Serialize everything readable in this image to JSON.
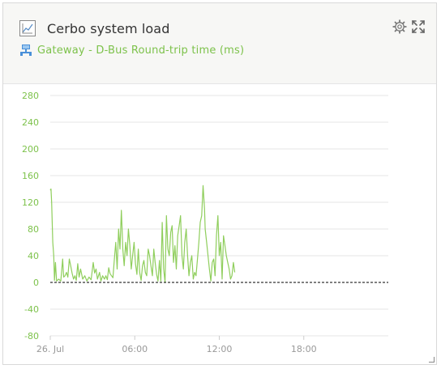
{
  "widget": {
    "title": "Cerbo system load",
    "subtitle": "Gateway - D-Bus Round-trip time (ms)",
    "icons": {
      "chart": "line-chart-icon",
      "settings": "gear-icon",
      "expand": "expand-icon",
      "network": "network-icon"
    },
    "colors": {
      "accent": "#7dc24b",
      "line": "#8fce5c",
      "baseline": "#000000",
      "grid": "#e6e6e6"
    }
  },
  "chart_data": {
    "type": "line",
    "title": "",
    "xlabel": "",
    "ylabel": "",
    "ylim": [
      -80,
      280
    ],
    "xlim": [
      0,
      24
    ],
    "y_ticks": [
      "280",
      "240",
      "200",
      "160",
      "120",
      "80",
      "40",
      "0",
      "-40",
      "-80"
    ],
    "x_ticks": [
      "26. Jul",
      "06:00",
      "12:00",
      "18:00"
    ],
    "x_tick_values": [
      0,
      6,
      12,
      18
    ],
    "baseline": 0,
    "grid": true,
    "series": [
      {
        "values": [
          [
            0.0,
            138
          ],
          [
            0.05,
            140
          ],
          [
            0.1,
            120
          ],
          [
            0.18,
            60
          ],
          [
            0.25,
            40
          ],
          [
            0.3,
            3
          ],
          [
            0.37,
            30
          ],
          [
            0.45,
            2
          ],
          [
            0.6,
            5
          ],
          [
            0.75,
            2
          ],
          [
            0.88,
            35
          ],
          [
            0.95,
            8
          ],
          [
            1.05,
            10
          ],
          [
            1.15,
            15
          ],
          [
            1.25,
            8
          ],
          [
            1.35,
            35
          ],
          [
            1.45,
            25
          ],
          [
            1.55,
            14
          ],
          [
            1.65,
            5
          ],
          [
            1.75,
            10
          ],
          [
            1.85,
            3
          ],
          [
            1.95,
            28
          ],
          [
            2.05,
            8
          ],
          [
            2.15,
            20
          ],
          [
            2.3,
            5
          ],
          [
            2.45,
            10
          ],
          [
            2.6,
            2
          ],
          [
            2.75,
            8
          ],
          [
            2.9,
            4
          ],
          [
            3.05,
            30
          ],
          [
            3.15,
            14
          ],
          [
            3.25,
            20
          ],
          [
            3.35,
            5
          ],
          [
            3.5,
            15
          ],
          [
            3.6,
            2
          ],
          [
            3.72,
            10
          ],
          [
            3.85,
            5
          ],
          [
            3.95,
            10
          ],
          [
            4.05,
            4
          ],
          [
            4.15,
            22
          ],
          [
            4.25,
            13
          ],
          [
            4.35,
            10
          ],
          [
            4.45,
            7
          ],
          [
            4.55,
            35
          ],
          [
            4.65,
            60
          ],
          [
            4.75,
            20
          ],
          [
            4.85,
            80
          ],
          [
            4.95,
            50
          ],
          [
            5.05,
            108
          ],
          [
            5.1,
            80
          ],
          [
            5.15,
            50
          ],
          [
            5.25,
            25
          ],
          [
            5.35,
            60
          ],
          [
            5.45,
            40
          ],
          [
            5.55,
            80
          ],
          [
            5.65,
            55
          ],
          [
            5.75,
            20
          ],
          [
            5.85,
            40
          ],
          [
            5.95,
            60
          ],
          [
            6.05,
            28
          ],
          [
            6.15,
            12
          ],
          [
            6.25,
            50
          ],
          [
            6.35,
            15
          ],
          [
            6.45,
            3
          ],
          [
            6.55,
            25
          ],
          [
            6.65,
            33
          ],
          [
            6.75,
            15
          ],
          [
            6.85,
            10
          ],
          [
            6.95,
            50
          ],
          [
            7.05,
            40
          ],
          [
            7.15,
            25
          ],
          [
            7.25,
            10
          ],
          [
            7.35,
            50
          ],
          [
            7.45,
            30
          ],
          [
            7.55,
            12
          ],
          [
            7.65,
            2
          ],
          [
            7.75,
            33
          ],
          [
            7.85,
            2
          ],
          [
            7.95,
            90
          ],
          [
            8.05,
            20
          ],
          [
            8.15,
            0
          ],
          [
            8.25,
            100
          ],
          [
            8.35,
            50
          ],
          [
            8.45,
            40
          ],
          [
            8.55,
            75
          ],
          [
            8.65,
            85
          ],
          [
            8.75,
            30
          ],
          [
            8.85,
            55
          ],
          [
            8.95,
            20
          ],
          [
            9.05,
            70
          ],
          [
            9.15,
            85
          ],
          [
            9.25,
            100
          ],
          [
            9.35,
            40
          ],
          [
            9.45,
            20
          ],
          [
            9.55,
            60
          ],
          [
            9.65,
            80
          ],
          [
            9.75,
            40
          ],
          [
            9.85,
            10
          ],
          [
            9.95,
            30
          ],
          [
            10.05,
            40
          ],
          [
            10.15,
            5
          ],
          [
            10.25,
            15
          ],
          [
            10.35,
            10
          ],
          [
            10.45,
            35
          ],
          [
            10.55,
            60
          ],
          [
            10.65,
            90
          ],
          [
            10.75,
            100
          ],
          [
            10.85,
            145
          ],
          [
            10.95,
            110
          ],
          [
            11.0,
            80
          ],
          [
            11.1,
            60
          ],
          [
            11.2,
            40
          ],
          [
            11.3,
            20
          ],
          [
            11.4,
            2
          ],
          [
            11.5,
            30
          ],
          [
            11.6,
            35
          ],
          [
            11.7,
            10
          ],
          [
            11.8,
            70
          ],
          [
            11.9,
            100
          ],
          [
            12.0,
            40
          ],
          [
            12.1,
            60
          ],
          [
            12.2,
            5
          ],
          [
            12.3,
            70
          ],
          [
            12.4,
            55
          ],
          [
            12.5,
            40
          ],
          [
            12.6,
            30
          ],
          [
            12.7,
            20
          ],
          [
            12.8,
            5
          ],
          [
            12.9,
            10
          ],
          [
            13.0,
            30
          ],
          [
            13.1,
            15
          ]
        ]
      }
    ]
  }
}
